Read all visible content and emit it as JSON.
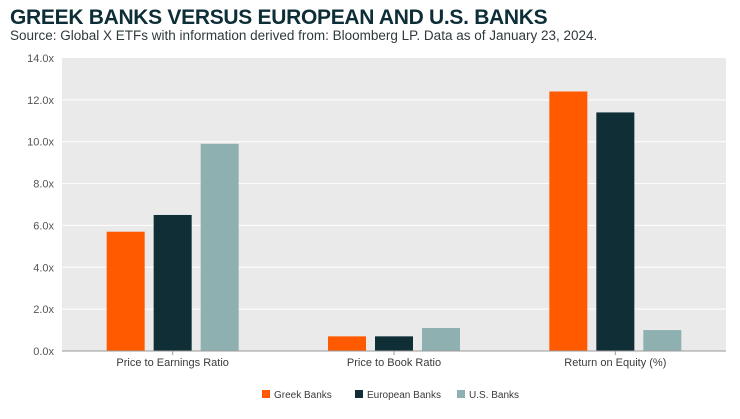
{
  "title": "GREEK BANKS VERSUS EUROPEAN AND U.S. BANKS",
  "subtitle": "Source: Global X ETFs with information derived from: Bloomberg LP. Data as of January 23, 2024.",
  "colors": {
    "greek": "#ff5a00",
    "european": "#0f2e36",
    "us": "#8fb0b0",
    "plot_background": "#eaeaea",
    "gridline": "#ffffff"
  },
  "chart_data": {
    "type": "bar",
    "categories": [
      "Price to Earnings Ratio",
      "Price to Book Ratio",
      "Return on Equity (%)"
    ],
    "series": [
      {
        "name": "Greek Banks",
        "values": [
          5.7,
          0.7,
          12.4
        ]
      },
      {
        "name": "European Banks",
        "values": [
          6.5,
          0.7,
          11.4
        ]
      },
      {
        "name": "U.S. Banks",
        "values": [
          9.9,
          1.1,
          1.0
        ]
      }
    ],
    "yticks": [
      "0.0x",
      "2.0x",
      "4.0x",
      "6.0x",
      "8.0x",
      "10.0x",
      "12.0x",
      "14.0x"
    ],
    "ylim": [
      0,
      14
    ],
    "xlabel": "",
    "ylabel": "",
    "grid": true,
    "legend_position": "bottom-center"
  }
}
